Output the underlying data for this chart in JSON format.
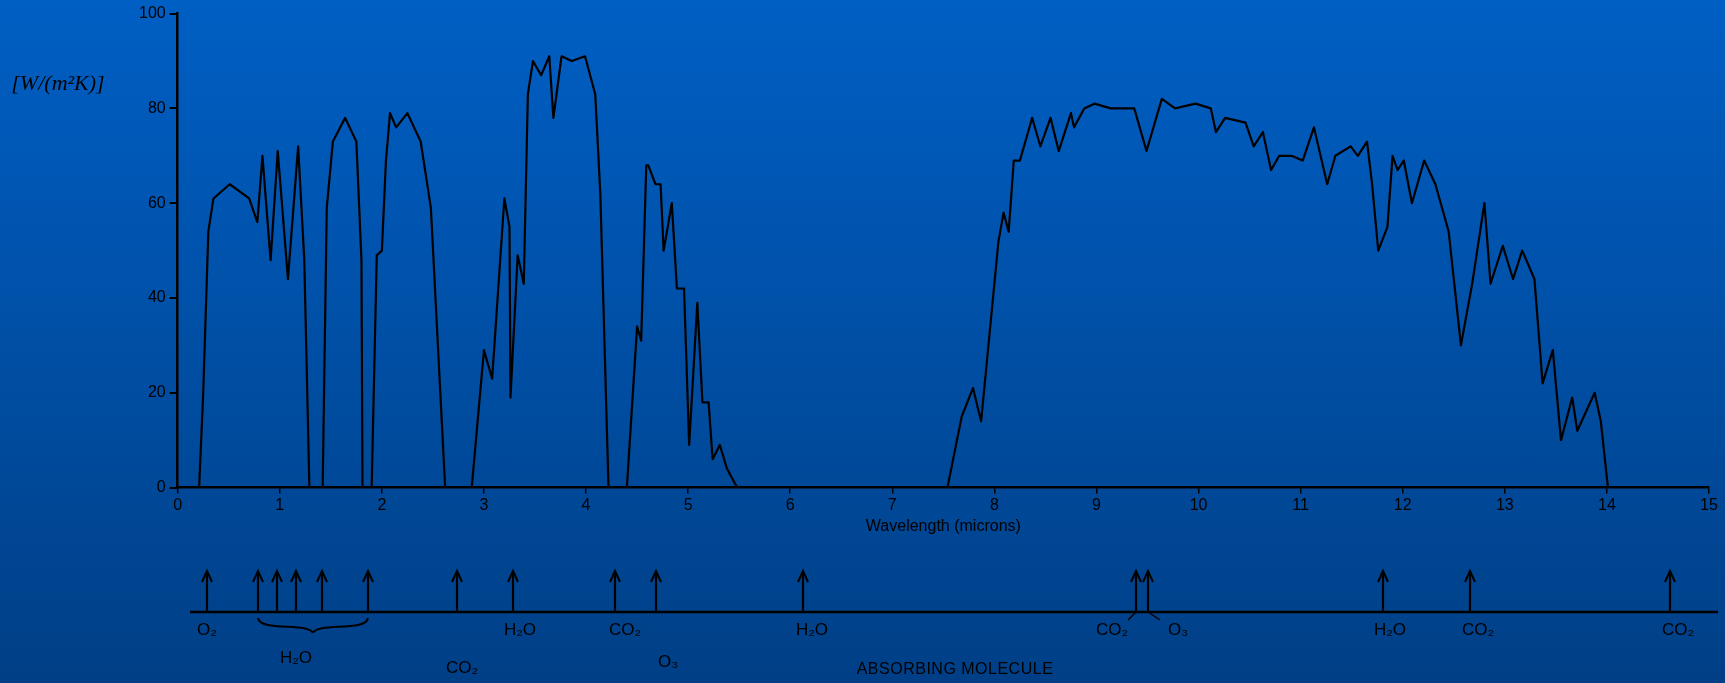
{
  "chart_data": {
    "type": "line",
    "xlabel": "Wavelength (microns)",
    "ylabel": "[W/(m²K)]",
    "x": [
      0.21,
      0.25,
      0.3,
      0.35,
      0.51,
      0.7,
      0.78,
      0.83,
      0.91,
      0.98,
      1.08,
      1.18,
      1.24,
      1.29,
      1.42,
      1.46,
      1.52,
      1.64,
      1.75,
      1.8,
      1.81,
      1.9,
      1.95,
      2.0,
      2.04,
      2.08,
      2.14,
      2.25,
      2.38,
      2.48,
      2.62,
      2.88,
      3.0,
      3.08,
      3.2,
      3.25,
      3.26,
      3.33,
      3.39,
      3.43,
      3.48,
      3.56,
      3.64,
      3.68,
      3.76,
      3.86,
      3.99,
      4.09,
      4.14,
      4.22,
      4.4,
      4.5,
      4.54,
      4.59,
      4.61,
      4.68,
      4.73,
      4.76,
      4.84,
      4.89,
      4.96,
      5.01,
      5.09,
      5.14,
      5.2,
      5.24,
      5.31,
      5.38,
      5.48,
      7.54,
      7.68,
      7.79,
      7.87,
      8.04,
      8.09,
      8.14,
      8.19,
      8.25,
      8.37,
      8.45,
      8.55,
      8.63,
      8.75,
      8.78,
      8.88,
      8.98,
      9.14,
      9.37,
      9.49,
      9.64,
      9.77,
      9.97,
      10.12,
      10.17,
      10.26,
      10.46,
      10.54,
      10.63,
      10.71,
      10.79,
      10.91,
      11.02,
      11.13,
      11.26,
      11.34,
      11.49,
      11.56,
      11.65,
      11.7,
      11.76,
      11.85,
      11.9,
      11.95,
      12.01,
      12.09,
      12.21,
      12.32,
      12.45,
      12.57,
      12.68,
      12.8,
      12.86,
      12.98,
      13.08,
      13.17,
      13.29,
      13.37,
      13.47,
      13.55,
      13.66,
      13.71,
      13.88,
      13.94,
      14.01
    ],
    "series": [
      {
        "color": "#000000",
        "values": [
          0,
          20,
          54,
          61,
          64,
          61,
          56,
          70,
          48,
          71,
          44,
          72,
          48,
          0,
          0,
          59,
          73,
          78,
          73,
          48,
          0,
          0,
          49,
          50,
          69,
          79,
          76,
          79,
          73,
          59,
          0,
          0,
          29,
          23,
          61,
          55,
          19,
          49,
          43,
          83,
          90,
          87,
          91,
          78,
          91,
          90,
          91,
          83,
          62,
          0,
          0,
          34,
          31,
          68,
          68,
          64,
          64,
          50,
          60,
          42,
          42,
          9,
          39,
          18,
          18,
          6,
          9,
          4,
          0,
          0,
          15,
          21,
          14,
          52,
          58,
          54,
          69,
          69,
          78,
          72,
          78,
          71,
          79,
          76,
          80,
          81,
          80,
          80,
          71,
          82,
          80,
          81,
          80,
          75,
          78,
          77,
          72,
          75,
          67,
          70,
          70,
          69,
          76,
          64,
          70,
          72,
          70,
          73,
          64,
          50,
          55,
          70,
          67,
          69,
          60,
          69,
          64,
          54,
          30,
          43,
          60,
          43,
          51,
          44,
          50,
          44,
          22,
          29,
          10,
          19,
          12,
          20,
          14,
          0
        ]
      }
    ],
    "xlim": [
      0,
      15
    ],
    "xticks": [
      0,
      1,
      2,
      3,
      4,
      5,
      6,
      7,
      8,
      9,
      10,
      11,
      12,
      13,
      14,
      15
    ],
    "ylim": [
      0,
      100
    ],
    "yticks": [
      0,
      20,
      40,
      60,
      80,
      100
    ],
    "marker": "none",
    "line_style": "solid",
    "annotations": [
      "O₂",
      "H₂O",
      "CO₂",
      "H₂O",
      "CO₂",
      "O₃",
      "H₂O",
      "CO₂",
      "O₃",
      "H₂O",
      "CO₂",
      "CO₂",
      "ABSORBING MOLECULE"
    ]
  }
}
